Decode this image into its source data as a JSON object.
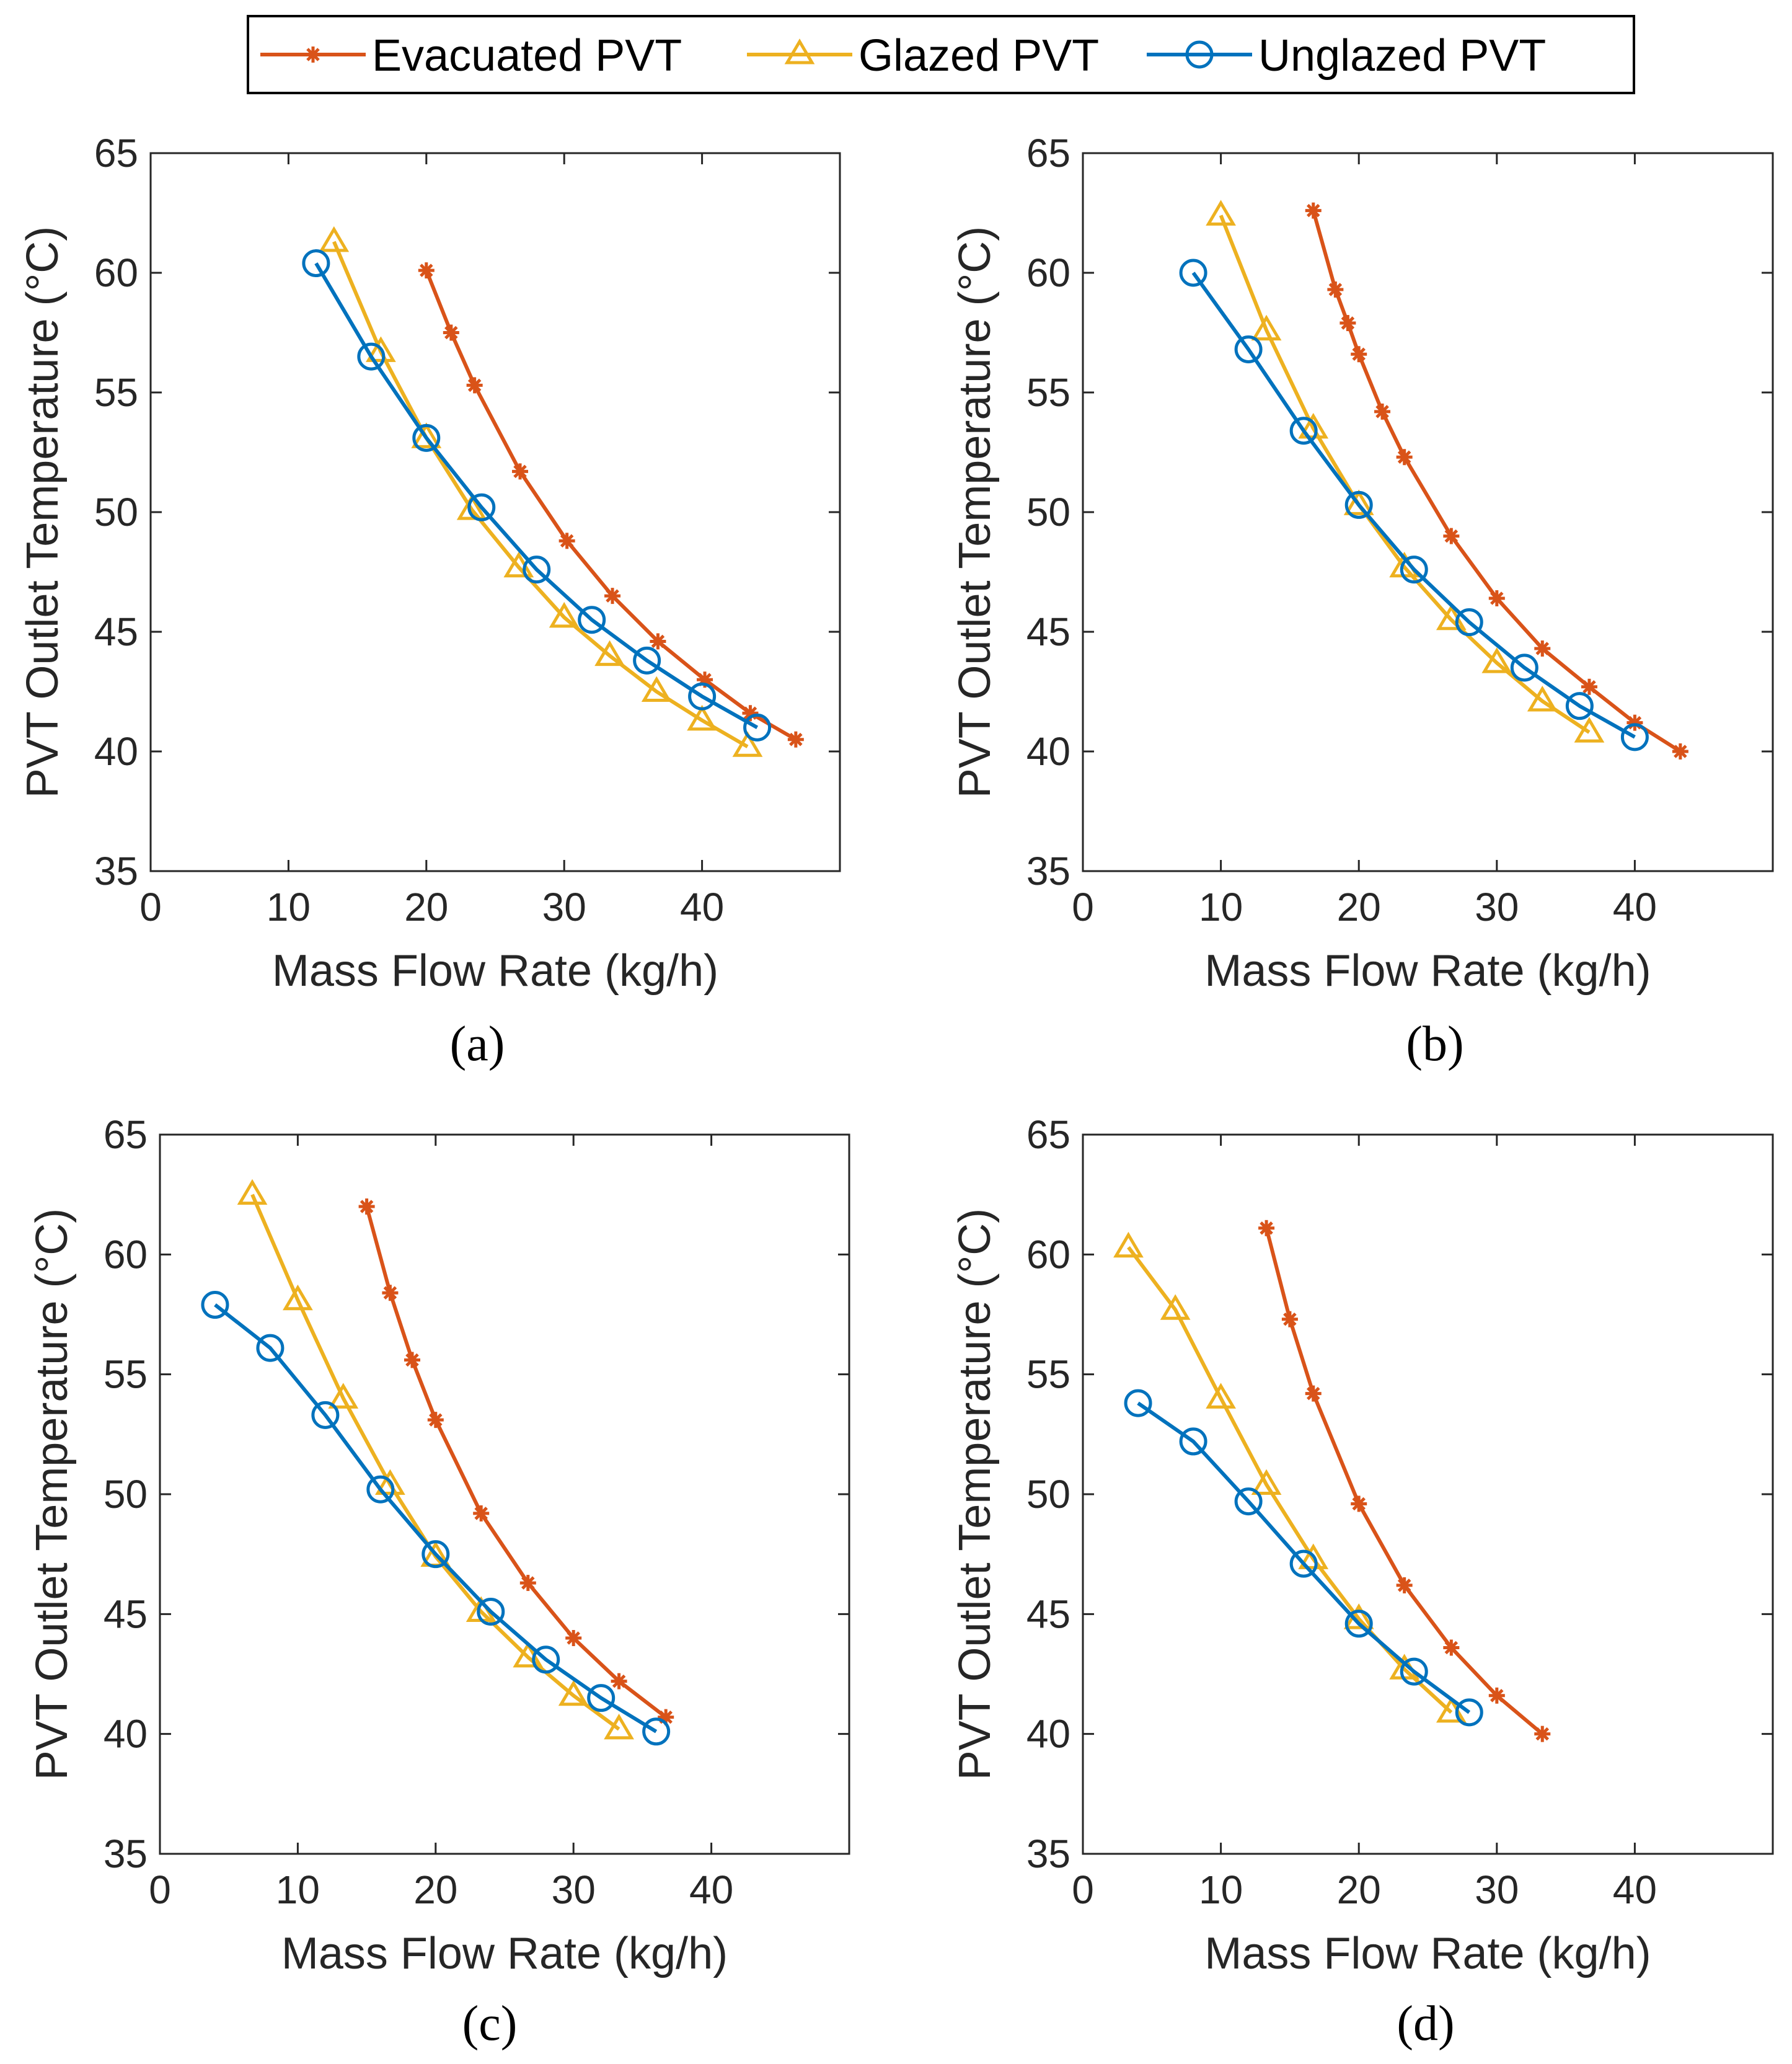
{
  "legend": {
    "entries": [
      "Evacuated PVT",
      "Glazed PVT",
      "Unglazed PVT"
    ]
  },
  "colors": {
    "Evacuated PVT": "#D95319",
    "Glazed PVT": "#EDB120",
    "Unglazed PVT": "#0072BD",
    "axis": "#262626"
  },
  "chart_data": [
    {
      "type": "line",
      "panel_label": "(a)",
      "xlabel": "Mass Flow Rate (kg/h)",
      "ylabel": "PVT Outlet Temperature (°C)",
      "xlim": [
        0,
        50
      ],
      "ylim": [
        35,
        65
      ],
      "xticks": [
        0,
        10,
        20,
        30,
        40
      ],
      "yticks": [
        35,
        40,
        45,
        50,
        55,
        60,
        65
      ],
      "series": [
        {
          "name": "Evacuated PVT",
          "marker": "asterisk",
          "x": [
            20,
            21.8,
            23.5,
            26.8,
            30.2,
            33.5,
            36.8,
            40.2,
            43.5,
            46.8
          ],
          "y": [
            60.1,
            57.5,
            55.3,
            51.7,
            48.8,
            46.5,
            44.6,
            43.0,
            41.6,
            40.5
          ]
        },
        {
          "name": "Glazed PVT",
          "marker": "triangle",
          "x": [
            13.3,
            16.7,
            20,
            23.3,
            26.7,
            30,
            33.3,
            36.7,
            40,
            43.3
          ],
          "y": [
            61.3,
            56.7,
            53.1,
            50.1,
            47.7,
            45.6,
            44.0,
            42.5,
            41.3,
            40.2
          ]
        },
        {
          "name": "Unglazed PVT",
          "marker": "circle",
          "x": [
            12,
            16,
            20,
            24,
            28,
            32,
            36,
            40,
            44
          ],
          "y": [
            60.4,
            56.5,
            53.1,
            50.2,
            47.6,
            45.5,
            43.8,
            42.3,
            41.0
          ]
        }
      ]
    },
    {
      "type": "line",
      "panel_label": "(b)",
      "xlabel": "Mass Flow Rate (kg/h)",
      "ylabel": "PVT Outlet Temperature (°C)",
      "xlim": [
        0,
        50
      ],
      "ylim": [
        35,
        65
      ],
      "xticks": [
        0,
        10,
        20,
        30,
        40
      ],
      "yticks": [
        35,
        40,
        45,
        50,
        55,
        60,
        65
      ],
      "series": [
        {
          "name": "Evacuated PVT",
          "marker": "asterisk",
          "x": [
            16.7,
            18.3,
            19.2,
            20,
            21.7,
            23.3,
            26.7,
            30,
            33.3,
            36.7,
            40,
            43.3
          ],
          "y": [
            62.6,
            59.3,
            57.9,
            56.6,
            54.2,
            52.3,
            49.0,
            46.4,
            44.3,
            42.7,
            41.2,
            40.0
          ]
        },
        {
          "name": "Glazed PVT",
          "marker": "triangle",
          "x": [
            10,
            13.3,
            16.7,
            20,
            23.3,
            26.7,
            30,
            33.3,
            36.7
          ],
          "y": [
            62.4,
            57.6,
            53.5,
            50.3,
            47.7,
            45.5,
            43.7,
            42.1,
            40.8
          ]
        },
        {
          "name": "Unglazed PVT",
          "marker": "circle",
          "x": [
            8,
            12,
            16,
            20,
            24,
            28,
            32,
            36,
            40
          ],
          "y": [
            60.0,
            56.8,
            53.4,
            50.3,
            47.6,
            45.4,
            43.5,
            41.9,
            40.6
          ]
        }
      ]
    },
    {
      "type": "line",
      "panel_label": "(c)",
      "xlabel": "Mass Flow Rate (kg/h)",
      "ylabel": "PVT Outlet Temperature (°C)",
      "xlim": [
        0,
        50
      ],
      "ylim": [
        35,
        65
      ],
      "xticks": [
        0,
        10,
        20,
        30,
        40
      ],
      "yticks": [
        35,
        40,
        45,
        50,
        55,
        60,
        65
      ],
      "series": [
        {
          "name": "Evacuated PVT",
          "marker": "asterisk",
          "x": [
            15,
            16.7,
            18.3,
            20,
            23.3,
            26.7,
            30,
            33.3,
            36.7
          ],
          "y": [
            62.0,
            58.4,
            55.6,
            53.1,
            49.2,
            46.3,
            44.0,
            42.2,
            40.7
          ]
        },
        {
          "name": "Glazed PVT",
          "marker": "triangle",
          "x": [
            6.7,
            10,
            13.3,
            16.7,
            20,
            23.3,
            26.7,
            30,
            33.3
          ],
          "y": [
            62.5,
            58.1,
            54.0,
            50.4,
            47.4,
            45.1,
            43.2,
            41.6,
            40.2
          ]
        },
        {
          "name": "Unglazed PVT",
          "marker": "circle",
          "x": [
            4,
            8,
            12,
            16,
            20,
            24,
            28,
            32,
            36
          ],
          "y": [
            57.9,
            56.1,
            53.3,
            50.2,
            47.5,
            45.1,
            43.1,
            41.5,
            40.1
          ]
        }
      ]
    },
    {
      "type": "line",
      "panel_label": "(d)",
      "xlabel": "Mass Flow Rate (kg/h)",
      "ylabel": "PVT Outlet Temperature (°C)",
      "xlim": [
        0,
        50
      ],
      "ylim": [
        35,
        65
      ],
      "xticks": [
        0,
        10,
        20,
        30,
        40
      ],
      "yticks": [
        35,
        40,
        45,
        50,
        55,
        60,
        65
      ],
      "series": [
        {
          "name": "Evacuated PVT",
          "marker": "asterisk",
          "x": [
            13.3,
            15,
            16.7,
            20,
            23.3,
            26.7,
            30,
            33.3
          ],
          "y": [
            61.1,
            57.3,
            54.2,
            49.6,
            46.2,
            43.6,
            41.6,
            40.0
          ]
        },
        {
          "name": "Glazed PVT",
          "marker": "triangle",
          "x": [
            3.3,
            6.7,
            10,
            13.3,
            16.7,
            20,
            23.3,
            26.7
          ],
          "y": [
            60.3,
            57.7,
            54.0,
            50.4,
            47.3,
            44.8,
            42.7,
            40.9
          ]
        },
        {
          "name": "Unglazed PVT",
          "marker": "circle",
          "x": [
            4,
            8,
            12,
            16,
            20,
            24,
            28
          ],
          "y": [
            53.8,
            52.2,
            49.7,
            47.1,
            44.6,
            42.6,
            40.9
          ]
        }
      ]
    }
  ]
}
